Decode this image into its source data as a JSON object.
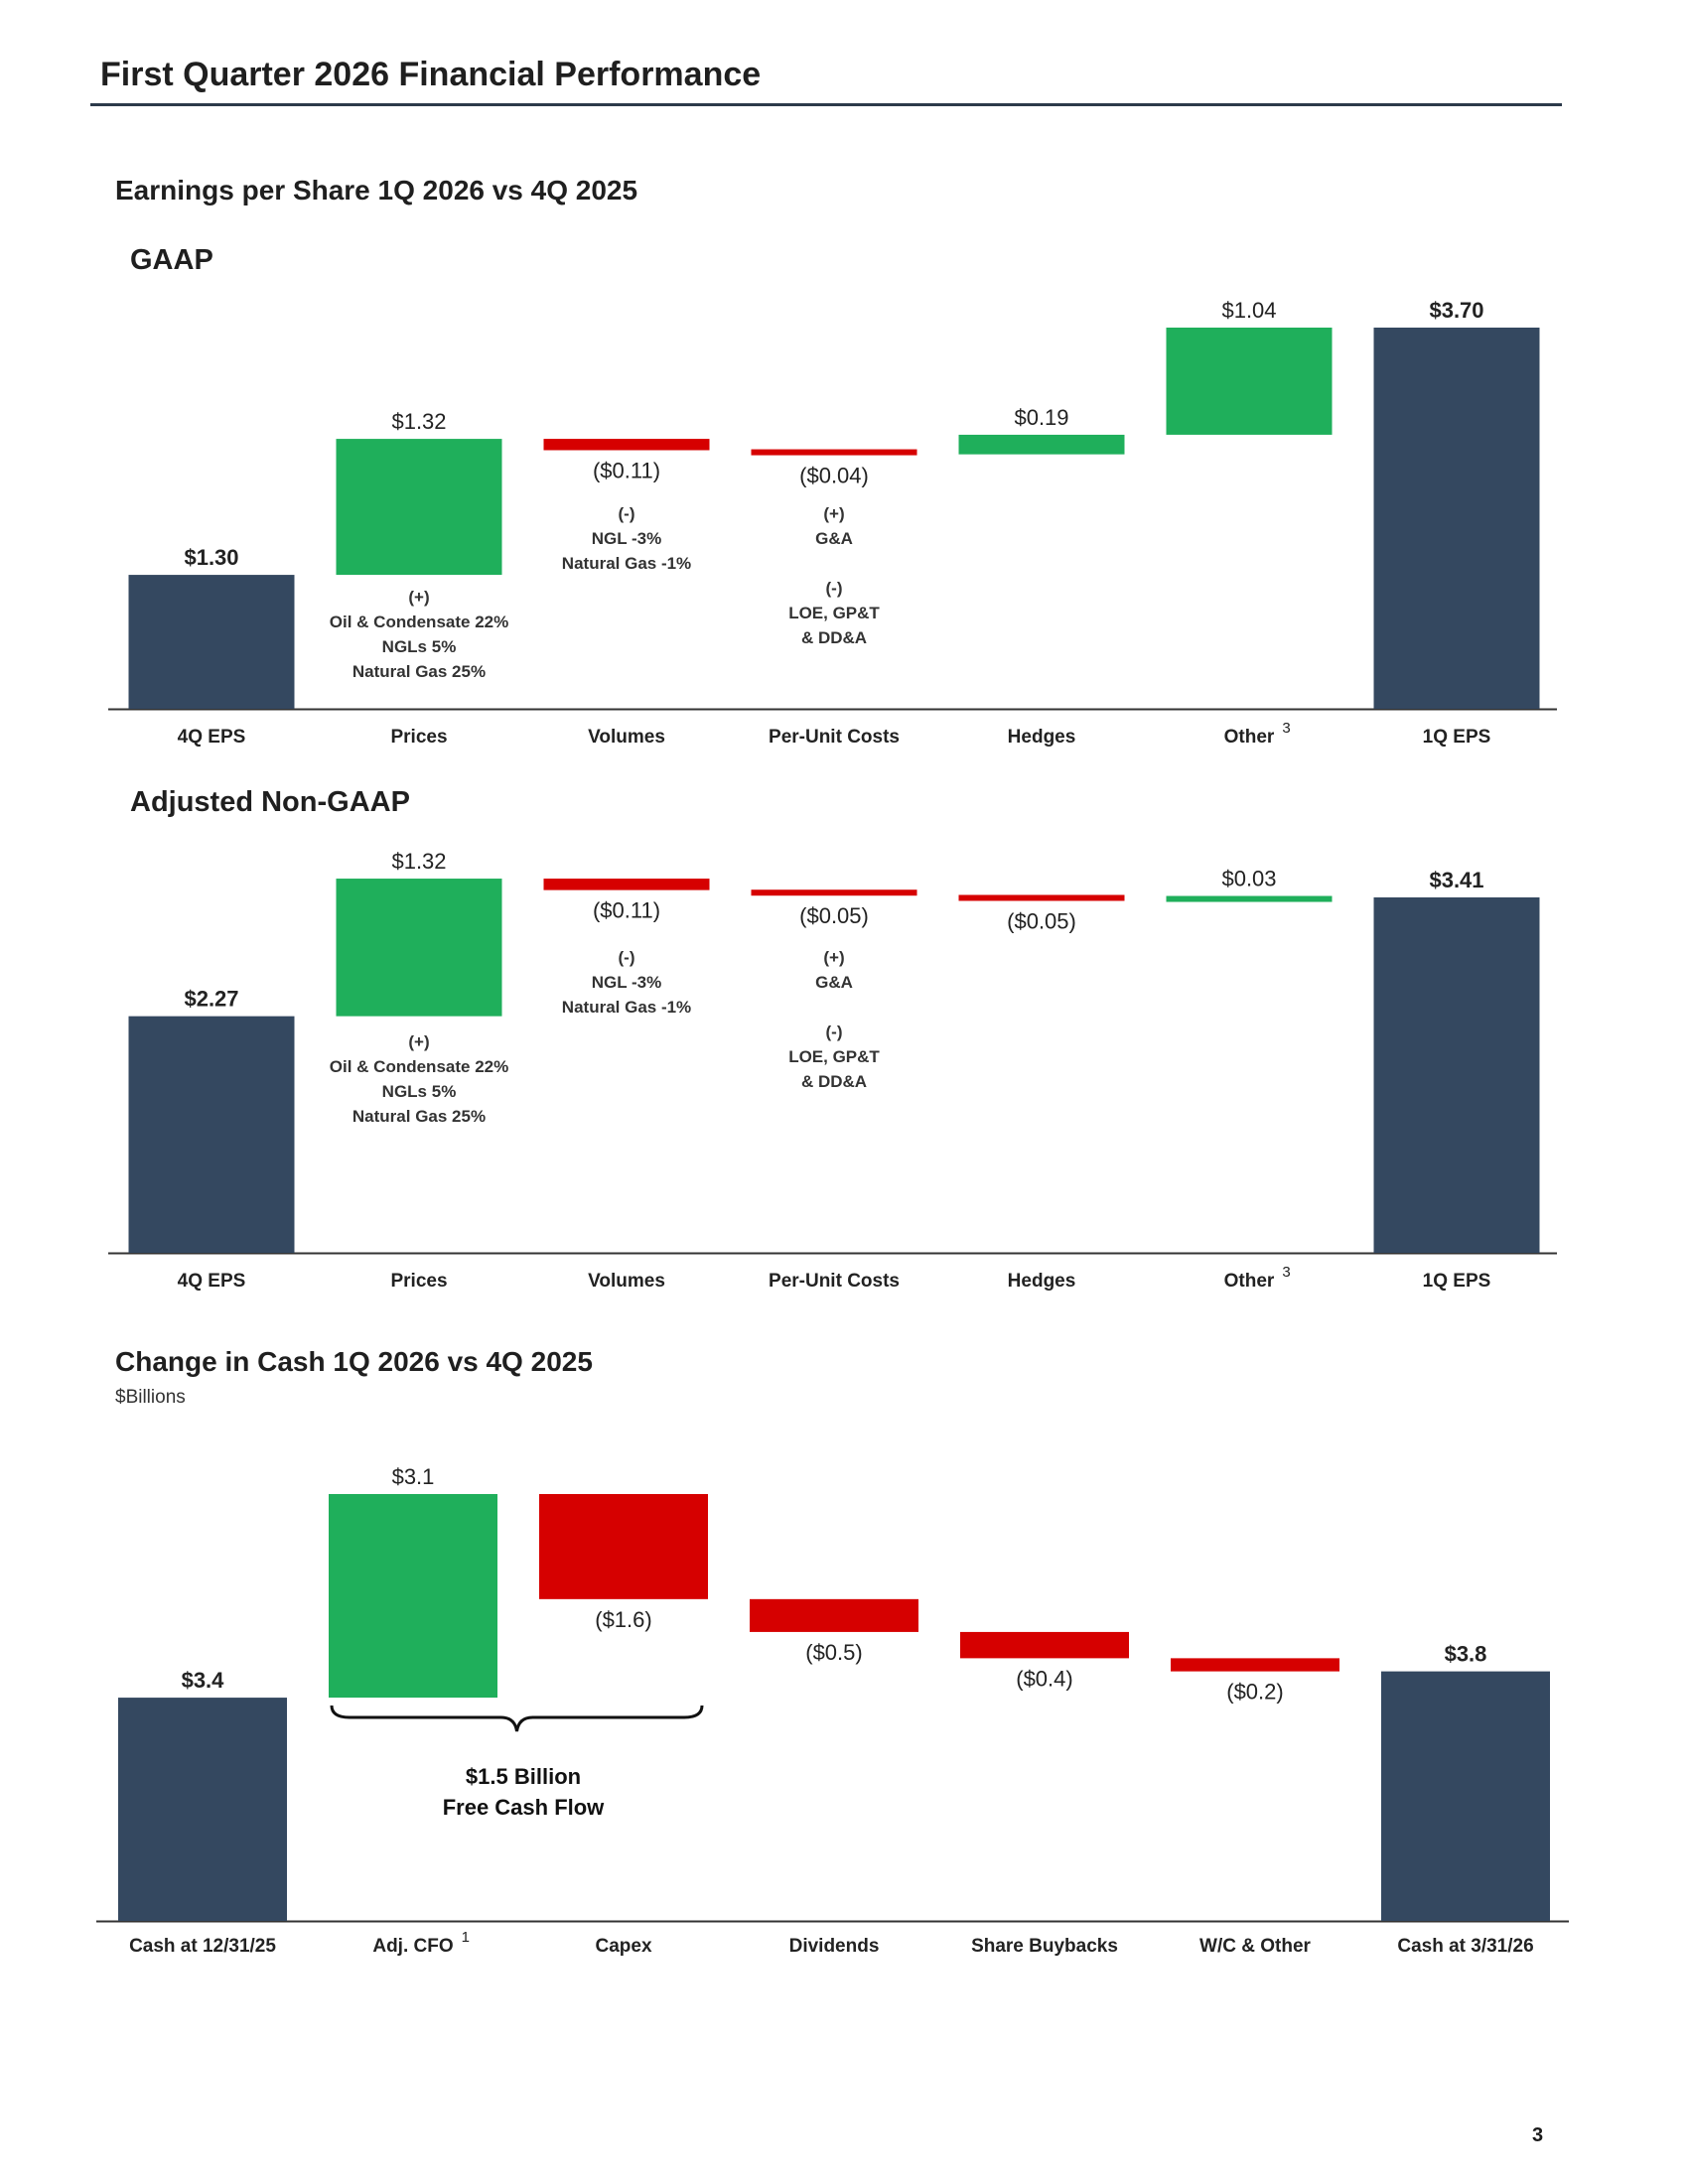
{
  "page": {
    "title": "First Quarter 2026 Financial Performance",
    "page_number": "3"
  },
  "eps_section": {
    "title": "Earnings per Share 1Q 2026 vs 4Q 2025"
  },
  "cash_section": {
    "title": "Change in Cash 1Q 2026 vs 4Q 2025",
    "unit": "$Billions",
    "brace_label_1": "$1.5 Billion",
    "brace_label_2": "Free Cash Flow"
  },
  "colors": {
    "total": "#344860",
    "increase": "#1faf5b",
    "decrease": "#d60000",
    "axis": "#333333"
  },
  "chart_data": [
    {
      "type": "bar",
      "subtype": "waterfall",
      "title": "GAAP",
      "categories": [
        "4Q EPS",
        "Prices",
        "Volumes",
        "Per-Unit Costs",
        "Hedges",
        "Other",
        "1Q EPS"
      ],
      "category_superscripts": [
        "",
        "",
        "",
        "",
        "",
        "3",
        ""
      ],
      "values": [
        1.3,
        1.32,
        -0.11,
        -0.04,
        0.19,
        1.04,
        3.7
      ],
      "kinds": [
        "total",
        "increase",
        "decrease",
        "decrease",
        "increase",
        "increase",
        "total"
      ],
      "data_labels": [
        "$1.30",
        "$1.32",
        "($0.11)",
        "($0.04)",
        "$0.19",
        "$1.04",
        "$3.70"
      ],
      "annotations": [
        {
          "category": "Prices",
          "lines": [
            "(+)",
            "Oil & Condensate 22%",
            "NGLs 5%",
            "Natural Gas 25%"
          ]
        },
        {
          "category": "Volumes",
          "lines": [
            "(-)",
            "NGL -3%",
            "Natural Gas -1%"
          ]
        },
        {
          "category": "Per-Unit Costs",
          "lines": [
            "(+)",
            "G&A",
            "",
            "(-)",
            "LOE, GP&T",
            "& DD&A"
          ]
        }
      ],
      "ylim": [
        0,
        3.7
      ]
    },
    {
      "type": "bar",
      "subtype": "waterfall",
      "title": "Adjusted Non-GAAP",
      "categories": [
        "4Q EPS",
        "Prices",
        "Volumes",
        "Per-Unit Costs",
        "Hedges",
        "Other",
        "1Q EPS"
      ],
      "category_superscripts": [
        "",
        "",
        "",
        "",
        "",
        "3",
        ""
      ],
      "values": [
        2.27,
        1.32,
        -0.11,
        -0.05,
        -0.05,
        0.03,
        3.41
      ],
      "kinds": [
        "total",
        "increase",
        "decrease",
        "decrease",
        "decrease",
        "increase",
        "total"
      ],
      "data_labels": [
        "$2.27",
        "$1.32",
        "($0.11)",
        "($0.05)",
        "($0.05)",
        "$0.03",
        "$3.41"
      ],
      "annotations": [
        {
          "category": "Prices",
          "lines": [
            "(+)",
            "Oil & Condensate 22%",
            "NGLs 5%",
            "Natural Gas 25%"
          ]
        },
        {
          "category": "Volumes",
          "lines": [
            "(-)",
            "NGL -3%",
            "Natural Gas -1%"
          ]
        },
        {
          "category": "Per-Unit Costs",
          "lines": [
            "(+)",
            "G&A",
            "",
            "(-)",
            "LOE, GP&T",
            "& DD&A"
          ]
        }
      ],
      "ylim": [
        0,
        3.6
      ]
    },
    {
      "type": "bar",
      "subtype": "waterfall",
      "title": "",
      "categories": [
        "Cash at 12/31/25",
        "Adj. CFO",
        "Capex",
        "Dividends",
        "Share Buybacks",
        "W/C & Other",
        "Cash at 3/31/26"
      ],
      "category_superscripts": [
        "",
        "1",
        "",
        "",
        "",
        "",
        ""
      ],
      "values": [
        3.4,
        3.1,
        -1.6,
        -0.5,
        -0.4,
        -0.2,
        3.8
      ],
      "kinds": [
        "total",
        "increase",
        "decrease",
        "decrease",
        "decrease",
        "decrease",
        "total"
      ],
      "data_labels": [
        "$3.4",
        "$3.1",
        "($1.6)",
        "($0.5)",
        "($0.4)",
        "($0.2)",
        "$3.8"
      ],
      "ylim": [
        0,
        6.5
      ]
    }
  ]
}
